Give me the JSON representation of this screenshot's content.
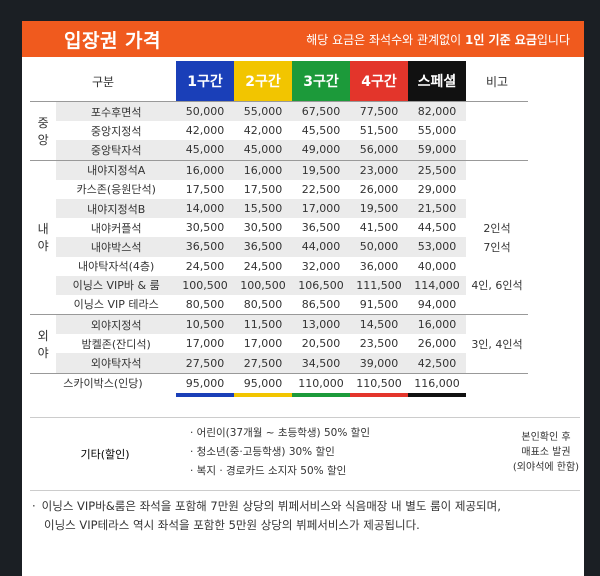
{
  "header": {
    "title": "입장권 가격",
    "note_pre": "해당 요금은 좌석수와 관계없이 ",
    "note_bold": "1인 기준 요금",
    "note_post": "입니다"
  },
  "columns": {
    "label": "구분",
    "zones": [
      "1구간",
      "2구간",
      "3구간",
      "4구간",
      "스페셜"
    ],
    "remark": "비고"
  },
  "groups": [
    {
      "name_line1": "중",
      "name_line2": "앙",
      "rows": [
        {
          "section": "포수후면석",
          "prices": [
            "50,000",
            "55,000",
            "67,500",
            "77,500",
            "82,000"
          ],
          "remark": ""
        },
        {
          "section": "중앙지정석",
          "prices": [
            "42,000",
            "42,000",
            "45,500",
            "51,500",
            "55,000"
          ],
          "remark": ""
        },
        {
          "section": "중앙탁자석",
          "prices": [
            "45,000",
            "45,000",
            "49,000",
            "56,000",
            "59,000"
          ],
          "remark": ""
        }
      ]
    },
    {
      "name_line1": "내",
      "name_line2": "야",
      "rows": [
        {
          "section": "내야지정석A",
          "prices": [
            "16,000",
            "16,000",
            "19,500",
            "23,000",
            "25,500"
          ],
          "remark": ""
        },
        {
          "section": "카스존(응원단석)",
          "prices": [
            "17,500",
            "17,500",
            "22,500",
            "26,000",
            "29,000"
          ],
          "remark": ""
        },
        {
          "section": "내야지정석B",
          "prices": [
            "14,000",
            "15,500",
            "17,000",
            "19,500",
            "21,500"
          ],
          "remark": ""
        },
        {
          "section": "내야커플석",
          "prices": [
            "30,500",
            "30,500",
            "36,500",
            "41,500",
            "44,500"
          ],
          "remark": "2인석"
        },
        {
          "section": "내야박스석",
          "prices": [
            "36,500",
            "36,500",
            "44,000",
            "50,000",
            "53,000"
          ],
          "remark": "7인석"
        },
        {
          "section": "내야탁자석(4층)",
          "prices": [
            "24,500",
            "24,500",
            "32,000",
            "36,000",
            "40,000"
          ],
          "remark": ""
        },
        {
          "section": "이닝스 VIP바 & 룸",
          "prices": [
            "100,500",
            "100,500",
            "106,500",
            "111,500",
            "114,000"
          ],
          "remark": "4인, 6인석"
        },
        {
          "section": "이닝스 VIP 테라스",
          "prices": [
            "80,500",
            "80,500",
            "86,500",
            "91,500",
            "94,000"
          ],
          "remark": ""
        }
      ]
    },
    {
      "name_line1": "외",
      "name_line2": "야",
      "rows": [
        {
          "section": "외야지정석",
          "prices": [
            "10,500",
            "11,500",
            "13,000",
            "14,500",
            "16,000"
          ],
          "remark": ""
        },
        {
          "section": "밤켈존(잔디석)",
          "prices": [
            "17,000",
            "17,000",
            "20,500",
            "23,500",
            "26,000"
          ],
          "remark": "3인, 4인석"
        },
        {
          "section": "외야탁자석",
          "prices": [
            "27,500",
            "27,500",
            "34,500",
            "39,000",
            "42,500"
          ],
          "remark": ""
        }
      ]
    }
  ],
  "skybox": {
    "section": "스카이박스(인당)",
    "prices": [
      "95,000",
      "95,000",
      "110,000",
      "110,500",
      "116,000"
    ]
  },
  "discount": {
    "label": "기타(할인)",
    "items": [
      "· 어린이(37개월 ~ 초등학생) 50% 할인",
      "· 청소년(중·고등학생) 30% 할인",
      "· 복지 · 경로카드 소지자 50% 할인"
    ],
    "remark_line1": "본인확인 후",
    "remark_line2": "매표소 발권",
    "remark_line3": "(외야석에 한함)"
  },
  "footer": {
    "bullet": "·",
    "line1": "이닝스 VIP바&룸은 좌석을 포함해 7만원 상당의 뷔페서비스와 식음매장 내 별도 룸이 제공되며,",
    "line2": "이닝스 VIP테라스 역시 좌석을 포함한 5만원 상당의 뷔페서비스가 제공됩니다."
  }
}
